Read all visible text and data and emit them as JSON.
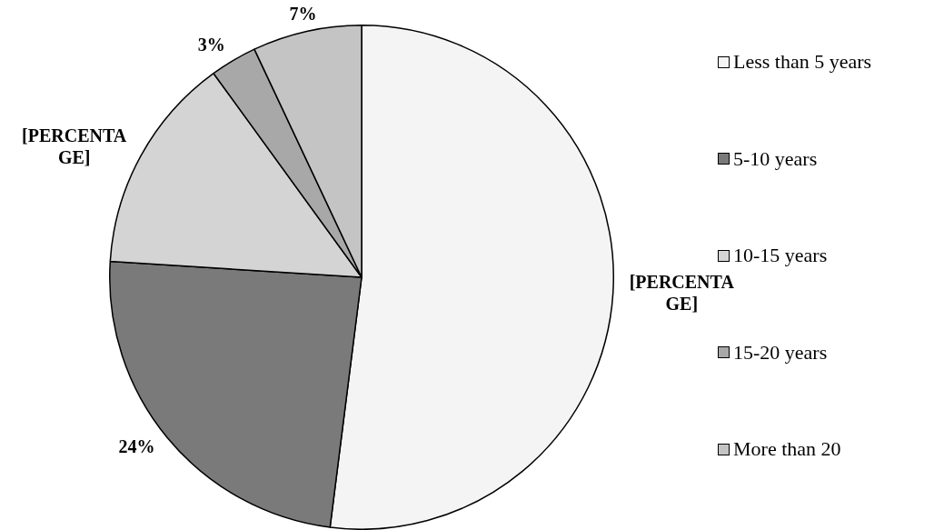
{
  "chart_data": {
    "type": "pie",
    "categories": [
      "Less than 5 years",
      "5-10 years",
      "10-15 years",
      "15-20 years",
      "More than 20"
    ],
    "values": [
      52,
      24,
      14,
      3,
      7
    ],
    "colors": [
      "#f4f4f4",
      "#7a7a7a",
      "#d4d4d4",
      "#a8a8a8",
      "#c4c4c4"
    ],
    "value_labels": [
      "[PERCENTAGE]",
      "24%",
      "[PERCENTAGE]",
      "3%",
      "7%"
    ],
    "legend": "right"
  }
}
